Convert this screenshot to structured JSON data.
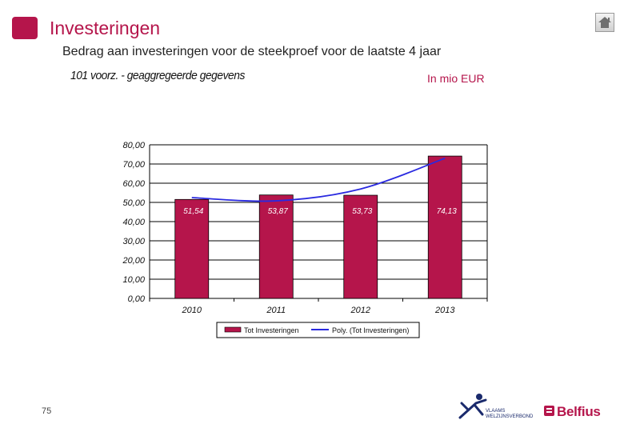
{
  "header": {
    "title": "Investeringen",
    "subtitle": "Bedrag aan investeringen voor de steekproef voor de laatste 4 jaar",
    "chart_heading": "101 voorz. - geaggregeerde gegevens",
    "unit_label": "In mio EUR"
  },
  "nav": {
    "home_icon": "home-icon"
  },
  "footer": {
    "page_number": "75",
    "logo_left_lines": [
      "VLAAMS",
      "WELZIJNSVERBOND"
    ],
    "logo_right": "Belfius"
  },
  "colors": {
    "accent": "#b5154b",
    "bar": "#b5154b",
    "trend": "#2a2ae0",
    "grid": "#000000"
  },
  "chart_data": {
    "type": "bar",
    "categories": [
      "2010",
      "2011",
      "2012",
      "2013"
    ],
    "series": [
      {
        "name": "Tot Investeringen",
        "values": [
          51.54,
          53.87,
          53.73,
          74.13
        ]
      },
      {
        "name": "Poly. (Tot Investeringen)",
        "values": [
          52.5,
          50.8,
          57.0,
          73.0
        ],
        "style": "line"
      }
    ],
    "data_labels": [
      "51,54",
      "53,87",
      "53,73",
      "74,13"
    ],
    "y_ticks": [
      "0,00",
      "10,00",
      "20,00",
      "30,00",
      "40,00",
      "50,00",
      "60,00",
      "70,00",
      "80,00"
    ],
    "ylim": [
      0,
      80
    ],
    "grid": true,
    "legend_position": "bottom"
  }
}
